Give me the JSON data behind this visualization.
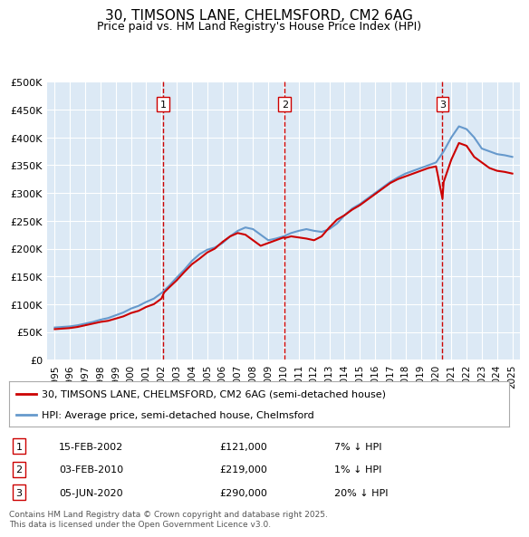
{
  "title": "30, TIMSONS LANE, CHELMSFORD, CM2 6AG",
  "subtitle": "Price paid vs. HM Land Registry's House Price Index (HPI)",
  "ylabel": "",
  "background_color": "#ffffff",
  "chart_bg_color": "#dce9f5",
  "grid_color": "#ffffff",
  "ylim": [
    0,
    500000
  ],
  "yticks": [
    0,
    50000,
    100000,
    150000,
    200000,
    250000,
    300000,
    350000,
    400000,
    450000,
    500000
  ],
  "ytick_labels": [
    "£0",
    "£50K",
    "£100K",
    "£150K",
    "£200K",
    "£250K",
    "£300K",
    "£350K",
    "£400K",
    "£450K",
    "£500K"
  ],
  "xlim_start": 1994.5,
  "xlim_end": 2025.5,
  "hpi_years": [
    1995,
    1995.5,
    1996,
    1996.5,
    1997,
    1997.5,
    1998,
    1998.5,
    1999,
    1999.5,
    2000,
    2000.5,
    2001,
    2001.5,
    2002,
    2002.5,
    2003,
    2003.5,
    2004,
    2004.5,
    2005,
    2005.5,
    2006,
    2006.5,
    2007,
    2007.5,
    2008,
    2008.5,
    2009,
    2009.5,
    2010,
    2010.5,
    2011,
    2011.5,
    2012,
    2012.5,
    2013,
    2013.5,
    2014,
    2014.5,
    2015,
    2015.5,
    2016,
    2016.5,
    2017,
    2017.5,
    2018,
    2018.5,
    2019,
    2019.5,
    2020,
    2020.5,
    2021,
    2021.5,
    2022,
    2022.5,
    2023,
    2023.5,
    2024,
    2024.5,
    2025
  ],
  "hpi_values": [
    58000,
    59000,
    60000,
    62000,
    65000,
    68000,
    72000,
    75000,
    80000,
    85000,
    92000,
    97000,
    104000,
    110000,
    120000,
    133000,
    148000,
    162000,
    178000,
    190000,
    198000,
    202000,
    210000,
    222000,
    232000,
    238000,
    235000,
    225000,
    215000,
    218000,
    222000,
    228000,
    232000,
    235000,
    232000,
    230000,
    235000,
    245000,
    260000,
    272000,
    280000,
    290000,
    300000,
    310000,
    320000,
    328000,
    335000,
    340000,
    345000,
    350000,
    355000,
    375000,
    400000,
    420000,
    415000,
    400000,
    380000,
    375000,
    370000,
    368000,
    365000
  ],
  "price_years": [
    1995,
    1995.5,
    1996,
    1996.5,
    1997,
    1997.5,
    1998,
    1998.5,
    1999,
    1999.5,
    2000,
    2000.5,
    2001,
    2001.5,
    2002,
    2002.17,
    2002.5,
    2003,
    2003.5,
    2004,
    2004.5,
    2005,
    2005.5,
    2006,
    2006.5,
    2007,
    2007.5,
    2008,
    2008.5,
    2009,
    2009.5,
    2010,
    2010.08,
    2010.5,
    2011,
    2011.5,
    2012,
    2012.5,
    2013,
    2013.5,
    2014,
    2014.5,
    2015,
    2015.5,
    2016,
    2016.5,
    2017,
    2017.5,
    2018,
    2018.5,
    2019,
    2019.5,
    2020,
    2020.42,
    2020.5,
    2021,
    2021.5,
    2022,
    2022.5,
    2023,
    2023.5,
    2024,
    2024.5,
    2025
  ],
  "price_values": [
    55000,
    56000,
    57000,
    59000,
    62000,
    65000,
    68000,
    70000,
    74000,
    78000,
    84000,
    88000,
    95000,
    100000,
    110000,
    121000,
    130000,
    143000,
    158000,
    172000,
    182000,
    193000,
    200000,
    212000,
    222000,
    228000,
    225000,
    215000,
    205000,
    210000,
    215000,
    220000,
    219000,
    222000,
    220000,
    218000,
    215000,
    222000,
    238000,
    252000,
    260000,
    270000,
    278000,
    288000,
    298000,
    308000,
    318000,
    325000,
    330000,
    335000,
    340000,
    345000,
    348000,
    290000,
    320000,
    360000,
    390000,
    385000,
    365000,
    355000,
    345000,
    340000,
    338000,
    335000
  ],
  "transactions": [
    {
      "num": 1,
      "date": "15-FEB-2002",
      "price": 121000,
      "pct": "7%",
      "direction": "↓",
      "year": 2002.12
    },
    {
      "num": 2,
      "date": "03-FEB-2010",
      "price": 219000,
      "pct": "1%",
      "direction": "↓",
      "year": 2010.08
    },
    {
      "num": 3,
      "date": "05-JUN-2020",
      "price": 290000,
      "pct": "20%",
      "direction": "↓",
      "year": 2020.42
    }
  ],
  "line_color_price": "#cc0000",
  "line_color_hpi": "#6699cc",
  "legend_label_price": "30, TIMSONS LANE, CHELMSFORD, CM2 6AG (semi-detached house)",
  "legend_label_hpi": "HPI: Average price, semi-detached house, Chelmsford",
  "footnote": "Contains HM Land Registry data © Crown copyright and database right 2025.\nThis data is licensed under the Open Government Licence v3.0.",
  "xticks": [
    1995,
    1996,
    1997,
    1998,
    1999,
    2000,
    2001,
    2002,
    2003,
    2004,
    2005,
    2006,
    2007,
    2008,
    2009,
    2010,
    2011,
    2012,
    2013,
    2014,
    2015,
    2016,
    2017,
    2018,
    2019,
    2020,
    2021,
    2022,
    2023,
    2024,
    2025
  ]
}
